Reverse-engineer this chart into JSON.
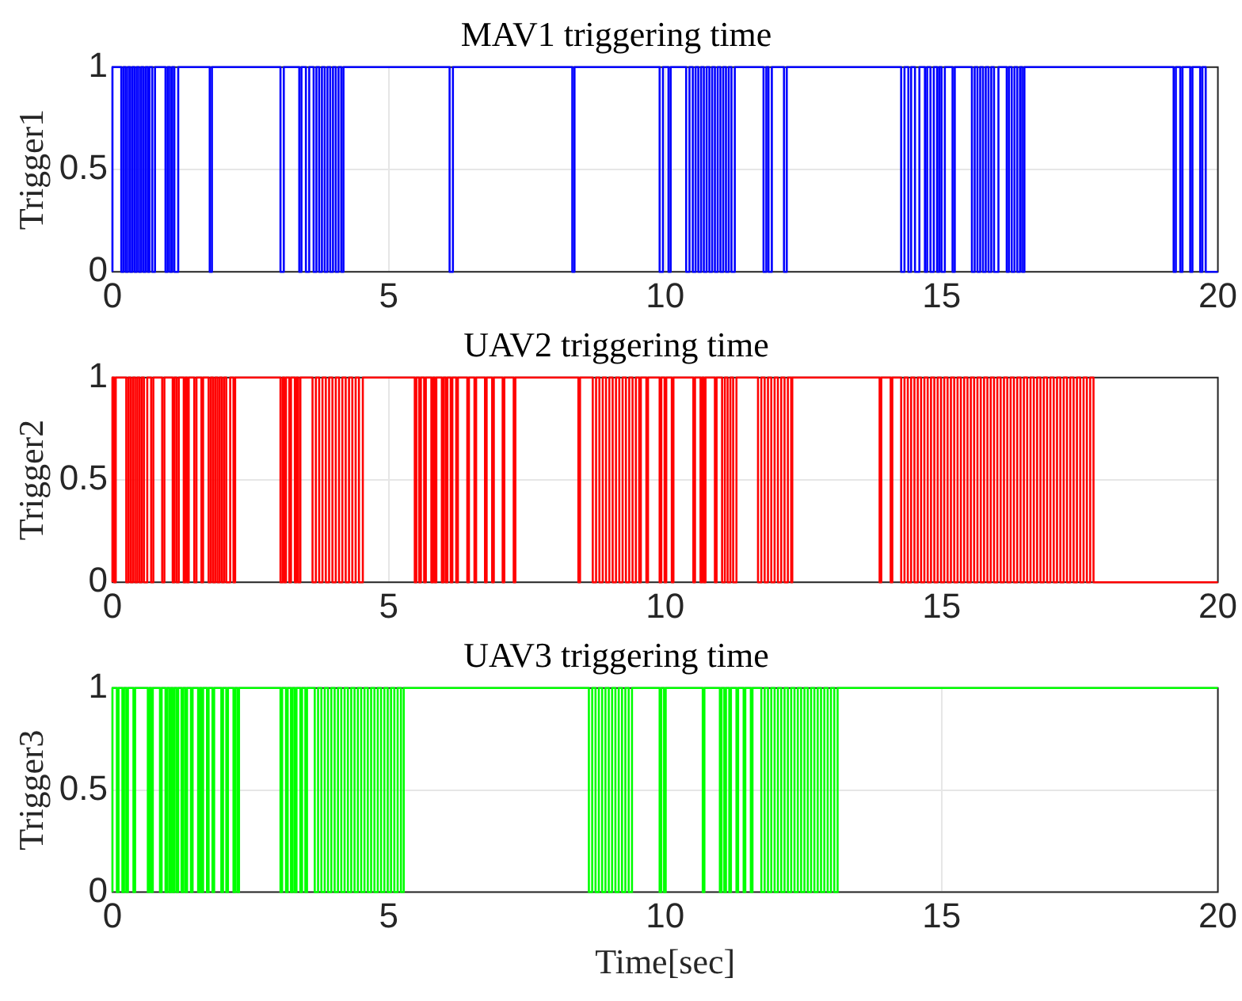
{
  "chart_data": [
    {
      "type": "step",
      "title": "MAV1 triggering time",
      "ylabel": "Trigger1",
      "xlim": [
        0,
        20
      ],
      "xticks": [
        0,
        5,
        10,
        15,
        20
      ],
      "ylim": [
        0,
        1
      ],
      "yticks": [
        0,
        0.5,
        1
      ],
      "grid": true,
      "legend": false,
      "series": [
        {
          "color": "#0000ff",
          "x": [
            0,
            0.16,
            0.2,
            0.24,
            0.28,
            0.32,
            0.36,
            0.4,
            0.44,
            0.48,
            0.52,
            0.56,
            0.6,
            0.64,
            0.67,
            0.72,
            0.77,
            0.96,
            1.0,
            1.04,
            1.08,
            1.12,
            1.19,
            1.76,
            1.8,
            3.04,
            3.1,
            3.38,
            3.42,
            3.5,
            3.56,
            3.64,
            3.69,
            3.74,
            3.79,
            3.84,
            3.89,
            3.94,
            3.99,
            4.04,
            4.09,
            4.14,
            4.18,
            6.1,
            6.16,
            8.32,
            8.36,
            9.9,
            9.96,
            10.06,
            10.1,
            10.38,
            10.44,
            10.5,
            10.55,
            10.6,
            10.65,
            10.7,
            10.75,
            10.8,
            10.85,
            10.9,
            10.95,
            11.0,
            11.05,
            11.1,
            11.15,
            11.2,
            11.26,
            11.78,
            11.83,
            11.87,
            11.93,
            12.15,
            12.2,
            14.27,
            14.33,
            14.4,
            14.45,
            14.52,
            14.6,
            14.7,
            14.74,
            14.8,
            14.86,
            14.92,
            14.96,
            15.0,
            15.06,
            15.2,
            15.24,
            15.55,
            15.6,
            15.65,
            15.7,
            15.75,
            15.8,
            15.85,
            15.9,
            15.95,
            16.03,
            16.18,
            16.22,
            16.27,
            16.32,
            16.37,
            16.42,
            16.46,
            16.5,
            19.2,
            19.24,
            19.32,
            19.36,
            19.5,
            19.54,
            19.68,
            19.72,
            19.78,
            19.8,
            20
          ],
          "values": [
            0,
            1,
            0,
            1,
            0,
            1,
            0,
            1,
            0,
            1,
            0,
            1,
            0,
            1,
            0,
            1,
            0,
            1,
            0,
            1,
            0,
            1,
            0,
            1,
            0,
            1,
            0,
            1,
            0,
            1,
            0,
            1,
            0,
            1,
            0,
            1,
            0,
            1,
            0,
            1,
            0,
            1,
            0,
            1,
            0,
            1,
            0,
            1,
            0,
            1,
            0,
            1,
            0,
            1,
            0,
            1,
            0,
            1,
            0,
            1,
            0,
            1,
            0,
            1,
            0,
            1,
            0,
            1,
            0,
            1,
            0,
            1,
            0,
            1,
            0,
            1,
            0,
            1,
            0,
            1,
            0,
            1,
            0,
            1,
            0,
            1,
            0,
            1,
            0,
            1,
            0,
            1,
            0,
            1,
            0,
            1,
            0,
            1,
            0,
            1,
            0,
            1,
            0,
            1,
            0,
            1,
            0,
            1,
            0,
            1,
            0,
            1,
            0,
            1,
            0,
            1,
            0,
            1,
            0,
            0
          ]
        }
      ]
    },
    {
      "type": "step",
      "title": "UAV2 triggering time",
      "ylabel": "Trigger2",
      "xlim": [
        0,
        20
      ],
      "xticks": [
        0,
        5,
        10,
        15,
        20
      ],
      "ylim": [
        0,
        1
      ],
      "yticks": [
        0,
        0.5,
        1
      ],
      "grid": true,
      "legend": false,
      "series": [
        {
          "color": "#ff0000",
          "x": [
            0,
            0.03,
            0.06,
            0.25,
            0.29,
            0.33,
            0.37,
            0.41,
            0.45,
            0.49,
            0.53,
            0.57,
            0.63,
            0.7,
            0.74,
            0.9,
            0.94,
            1.09,
            1.12,
            1.16,
            1.2,
            1.29,
            1.32,
            1.35,
            1.38,
            1.48,
            1.52,
            1.61,
            1.64,
            1.74,
            1.78,
            1.82,
            1.86,
            1.9,
            1.94,
            1.98,
            2.02,
            2.06,
            2.13,
            2.19,
            2.22,
            3.04,
            3.08,
            3.11,
            3.14,
            3.2,
            3.23,
            3.3,
            3.33,
            3.36,
            3.4,
            3.62,
            3.68,
            3.74,
            3.8,
            3.86,
            3.92,
            3.98,
            4.04,
            4.1,
            4.16,
            4.22,
            4.28,
            4.34,
            4.4,
            4.46,
            4.53,
            5.47,
            5.5,
            5.55,
            5.58,
            5.64,
            5.67,
            5.77,
            5.8,
            5.83,
            5.86,
            5.96,
            5.99,
            6.03,
            6.06,
            6.12,
            6.15,
            6.22,
            6.25,
            6.42,
            6.45,
            6.55,
            6.58,
            6.74,
            6.77,
            6.87,
            6.9,
            7.06,
            7.09,
            7.26,
            7.29,
            8.43,
            8.46,
            8.69,
            8.75,
            8.81,
            8.87,
            8.93,
            8.99,
            9.05,
            9.11,
            9.17,
            9.23,
            9.29,
            9.35,
            9.41,
            9.47,
            9.53,
            9.56,
            9.66,
            9.69,
            9.9,
            9.93,
            9.99,
            10.02,
            10.12,
            10.15,
            10.51,
            10.54,
            10.64,
            10.67,
            10.7,
            10.73,
            10.9,
            10.93,
            11.03,
            11.08,
            11.13,
            11.18,
            11.23,
            11.29,
            11.68,
            11.74,
            11.8,
            11.86,
            11.92,
            11.98,
            12.04,
            12.1,
            12.16,
            12.22,
            12.28,
            12.3,
            13.88,
            13.91,
            14.08,
            14.11,
            14.27,
            14.33,
            14.39,
            14.45,
            14.51,
            14.57,
            14.63,
            14.69,
            14.75,
            14.81,
            14.87,
            14.93,
            14.99,
            15.05,
            15.11,
            15.17,
            15.23,
            15.29,
            15.35,
            15.41,
            15.47,
            15.53,
            15.59,
            15.65,
            15.71,
            15.77,
            15.83,
            15.89,
            15.95,
            16.01,
            16.07,
            16.13,
            16.19,
            16.25,
            16.31,
            16.37,
            16.43,
            16.49,
            16.55,
            16.61,
            16.67,
            16.73,
            16.79,
            16.85,
            16.91,
            16.97,
            17.03,
            17.09,
            17.15,
            17.21,
            17.27,
            17.33,
            17.39,
            17.45,
            17.51,
            17.57,
            17.63,
            17.69,
            17.75,
            17.84,
            20
          ],
          "values": [
            0,
            1,
            0,
            1,
            0,
            1,
            0,
            1,
            0,
            1,
            0,
            1,
            0,
            1,
            0,
            1,
            0,
            1,
            0,
            1,
            0,
            1,
            0,
            1,
            0,
            1,
            0,
            1,
            0,
            1,
            0,
            1,
            0,
            1,
            0,
            1,
            0,
            1,
            0,
            1,
            0,
            1,
            0,
            1,
            0,
            1,
            0,
            1,
            0,
            1,
            0,
            1,
            0,
            1,
            0,
            1,
            0,
            1,
            0,
            1,
            0,
            1,
            0,
            1,
            0,
            1,
            0,
            1,
            0,
            1,
            0,
            1,
            0,
            1,
            0,
            1,
            0,
            1,
            0,
            1,
            0,
            1,
            0,
            1,
            0,
            1,
            0,
            1,
            0,
            1,
            0,
            1,
            0,
            1,
            0,
            1,
            0,
            1,
            0,
            1,
            0,
            1,
            0,
            1,
            0,
            1,
            0,
            1,
            0,
            1,
            0,
            1,
            0,
            1,
            0,
            1,
            0,
            1,
            0,
            1,
            0,
            1,
            0,
            1,
            0,
            1,
            0,
            1,
            0,
            1,
            0,
            1,
            0,
            1,
            0,
            1,
            0,
            1,
            0,
            1,
            0,
            1,
            0,
            1,
            0,
            1,
            0,
            1,
            0,
            1,
            0,
            1,
            0,
            1,
            0,
            1,
            0,
            1,
            0,
            1,
            0,
            1,
            0,
            1,
            0,
            1,
            0,
            1,
            0,
            1,
            0,
            1,
            0,
            1,
            0,
            1,
            0,
            1,
            0,
            1,
            0,
            1,
            0,
            1,
            0,
            1,
            0,
            1,
            0,
            1,
            0,
            1,
            0,
            1,
            0,
            1,
            0,
            1,
            0,
            1,
            0,
            1,
            0,
            1,
            0,
            1,
            0,
            1,
            0,
            1,
            0,
            1,
            0,
            0
          ]
        }
      ]
    },
    {
      "type": "step",
      "title": "UAV3 triggering time",
      "ylabel": "Trigger3",
      "xlabel": "Time[sec]",
      "xlim": [
        0,
        20
      ],
      "xticks": [
        0,
        5,
        10,
        15,
        20
      ],
      "ylim": [
        0,
        1
      ],
      "yticks": [
        0,
        0.5,
        1
      ],
      "grid": true,
      "legend": false,
      "series": [
        {
          "color": "#00ff00",
          "x": [
            0,
            0.08,
            0.11,
            0.18,
            0.21,
            0.25,
            0.28,
            0.38,
            0.41,
            0.64,
            0.67,
            0.7,
            0.73,
            0.86,
            0.89,
            0.96,
            0.99,
            1.03,
            1.06,
            1.09,
            1.12,
            1.16,
            1.19,
            1.25,
            1.28,
            1.32,
            1.35,
            1.42,
            1.45,
            1.55,
            1.58,
            1.61,
            1.64,
            1.71,
            1.74,
            1.81,
            1.84,
            1.97,
            2.0,
            2.06,
            2.09,
            2.19,
            2.22,
            2.26,
            2.29,
            3.04,
            3.07,
            3.14,
            3.17,
            3.23,
            3.26,
            3.3,
            3.33,
            3.4,
            3.43,
            3.49,
            3.52,
            3.66,
            3.72,
            3.78,
            3.84,
            3.9,
            3.96,
            4.02,
            4.08,
            4.14,
            4.2,
            4.26,
            4.32,
            4.38,
            4.44,
            4.5,
            4.56,
            4.62,
            4.68,
            4.74,
            4.8,
            4.86,
            4.92,
            4.98,
            5.04,
            5.1,
            5.16,
            5.22,
            5.27,
            8.62,
            8.68,
            8.74,
            8.8,
            8.86,
            8.92,
            8.98,
            9.04,
            9.1,
            9.16,
            9.22,
            9.28,
            9.34,
            9.4,
            9.9,
            9.93,
            9.98,
            10.01,
            10.68,
            10.71,
            10.99,
            11.02,
            11.07,
            11.1,
            11.16,
            11.19,
            11.29,
            11.32,
            11.42,
            11.45,
            11.55,
            11.58,
            11.74,
            11.8,
            11.86,
            11.92,
            11.98,
            12.04,
            12.1,
            12.16,
            12.22,
            12.28,
            12.34,
            12.4,
            12.46,
            12.52,
            12.58,
            12.64,
            12.7,
            12.76,
            12.82,
            12.88,
            12.94,
            13.0,
            13.06,
            13.12,
            13.2,
            20
          ],
          "values": [
            0,
            1,
            0,
            1,
            0,
            1,
            0,
            1,
            0,
            1,
            0,
            1,
            0,
            1,
            0,
            1,
            0,
            1,
            0,
            1,
            0,
            1,
            0,
            1,
            0,
            1,
            0,
            1,
            0,
            1,
            0,
            1,
            0,
            1,
            0,
            1,
            0,
            1,
            0,
            1,
            0,
            1,
            0,
            1,
            0,
            1,
            0,
            1,
            0,
            1,
            0,
            1,
            0,
            1,
            0,
            1,
            0,
            1,
            0,
            1,
            0,
            1,
            0,
            1,
            0,
            1,
            0,
            1,
            0,
            1,
            0,
            1,
            0,
            1,
            0,
            1,
            0,
            1,
            0,
            1,
            0,
            1,
            0,
            1,
            0,
            1,
            0,
            1,
            0,
            1,
            0,
            1,
            0,
            1,
            0,
            1,
            0,
            1,
            0,
            1,
            0,
            1,
            0,
            1,
            0,
            1,
            0,
            1,
            0,
            1,
            0,
            1,
            0,
            1,
            0,
            1,
            0,
            1,
            0,
            1,
            0,
            1,
            0,
            1,
            0,
            1,
            0,
            1,
            0,
            1,
            0,
            1,
            0,
            1,
            0,
            1,
            0,
            1,
            0,
            1,
            0,
            1,
            1
          ]
        }
      ]
    }
  ]
}
